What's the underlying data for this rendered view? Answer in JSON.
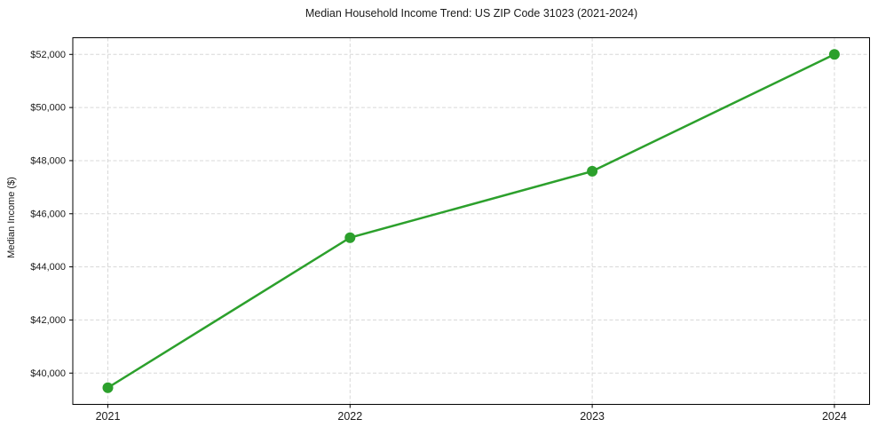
{
  "chart_data": {
    "type": "line",
    "title": "Median Household Income Trend: US ZIP Code 31023 (2021-2024)",
    "ylabel": "Median Income ($)",
    "xlabel": "",
    "categories": [
      "2021",
      "2022",
      "2023",
      "2024"
    ],
    "values": [
      39450,
      45100,
      47600,
      52000
    ],
    "y_ticks": [
      40000,
      42000,
      44000,
      46000,
      48000,
      50000,
      52000
    ],
    "y_tick_labels": [
      "$40,000",
      "$42,000",
      "$44,000",
      "$46,000",
      "$48,000",
      "$50,000",
      "$52,000"
    ],
    "ylim": [
      38822,
      52628
    ],
    "line_color": "#2ca02c",
    "marker": "circle",
    "grid": {
      "horizontal": true,
      "vertical": true,
      "style": "dashed",
      "color": "#d8d8d8"
    },
    "spine_color": "#000000",
    "background": "#ffffff",
    "legend": "none"
  }
}
